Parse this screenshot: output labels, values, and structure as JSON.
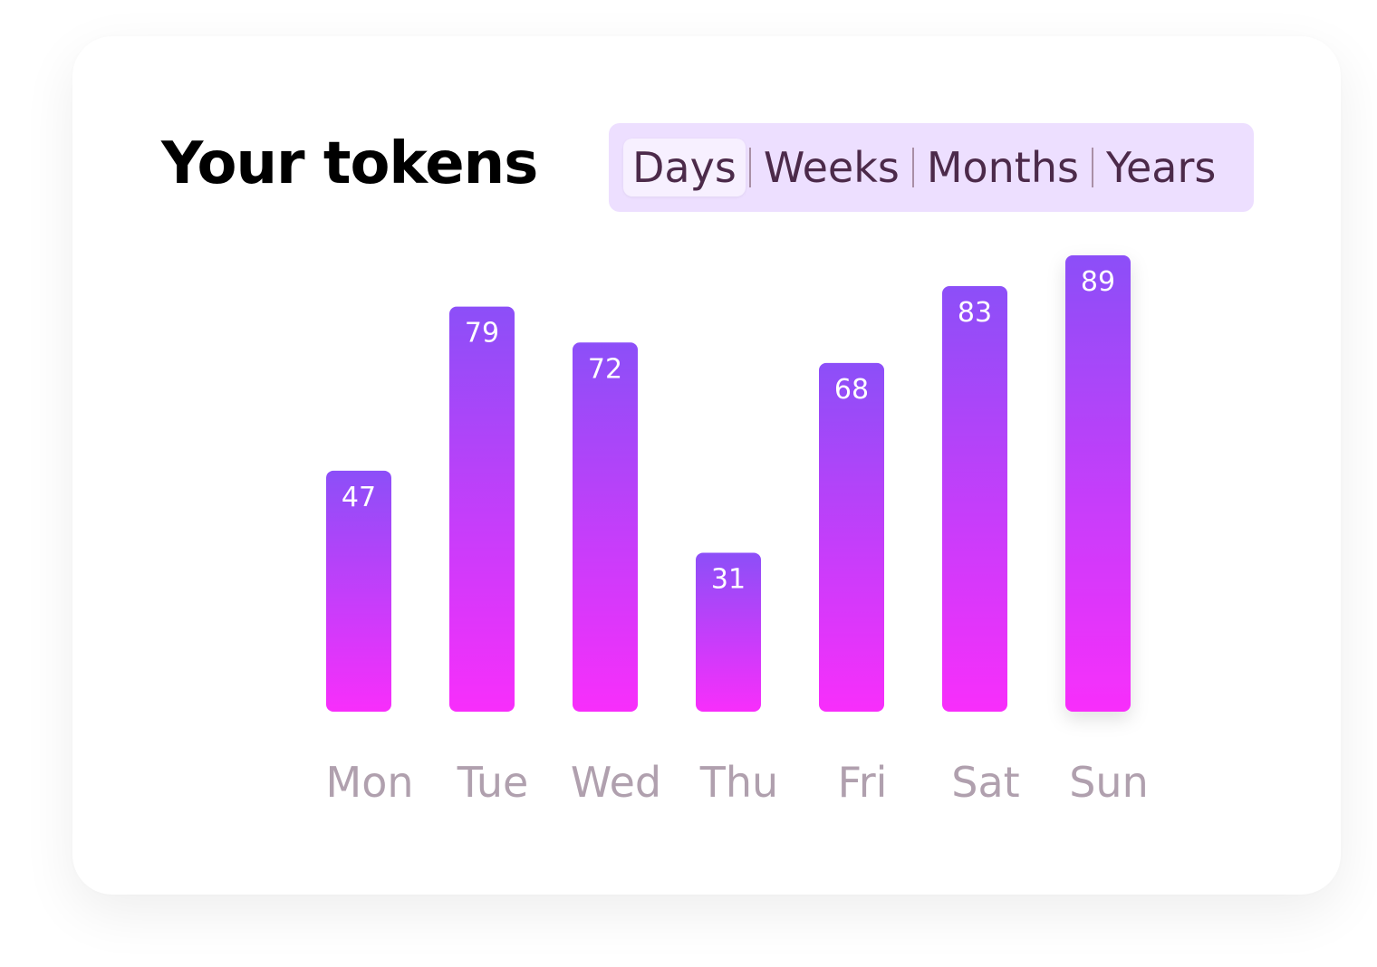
{
  "card": {
    "title": "Your tokens"
  },
  "tabs": [
    {
      "label": "Days",
      "active": true
    },
    {
      "label": "Weeks",
      "active": false
    },
    {
      "label": "Months",
      "active": false
    },
    {
      "label": "Years",
      "active": false
    }
  ],
  "colors": {
    "bar_top": "#8c4ff8",
    "bar_bottom": "#f82efb",
    "tab_bg": "#eddfff",
    "label": "#b0a0ae"
  },
  "chart_data": {
    "type": "bar",
    "title": "Your tokens",
    "categories": [
      "Mon",
      "Tue",
      "Wed",
      "Thu",
      "Fri",
      "Sat",
      "Sun"
    ],
    "values": [
      47,
      79,
      72,
      31,
      68,
      83,
      89
    ],
    "xlabel": "",
    "ylabel": "",
    "ylim": [
      0,
      89
    ],
    "grid": false,
    "data_labels": true
  }
}
